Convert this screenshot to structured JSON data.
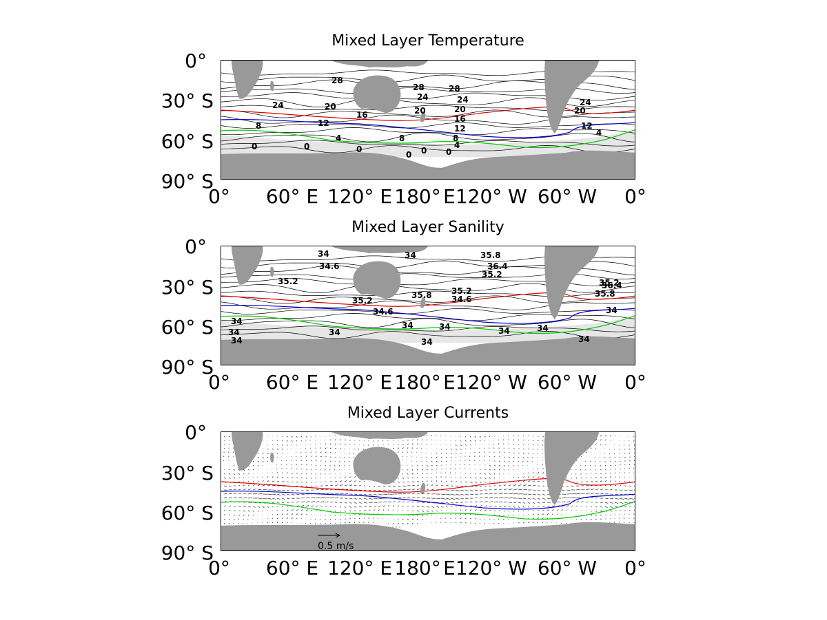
{
  "panels": [
    {
      "title": "Mixed Layer Temperature",
      "kind": "temperature",
      "yticks": [
        "0°",
        "30° S",
        "60° S",
        "90° S"
      ],
      "xticks": [
        "0°",
        "60° E",
        "120° E",
        "180°",
        "E120° W",
        "60° W",
        "0°"
      ],
      "contour_labels": [
        "28",
        "28",
        "28",
        "24",
        "24",
        "24",
        "24",
        "20",
        "20",
        "20",
        "20",
        "16",
        "16",
        "12",
        "12",
        "12",
        "8",
        "8",
        "8",
        "4",
        "4",
        "4",
        "0",
        "0",
        "0",
        "0",
        "0",
        "0"
      ]
    },
    {
      "title": "Mixed Layer Sanility",
      "kind": "salinity",
      "yticks": [
        "0°",
        "30° S",
        "60° S",
        "90° S"
      ],
      "xticks": [
        "0°",
        "60° E",
        "120° E",
        "180°",
        "E120° W",
        "60° W",
        "0°"
      ],
      "contour_labels": [
        "34",
        "34",
        "34.6",
        "35.2",
        "35.2",
        "35.8",
        "36.4",
        "35.2",
        "35.8",
        "35.2",
        "34.6",
        "34.6",
        "35.2",
        "36.4",
        "35.8",
        "34",
        "34",
        "34",
        "34",
        "34",
        "34",
        "34",
        "34",
        "34",
        "34",
        "34"
      ]
    },
    {
      "title": "Mixed Layer Currents",
      "kind": "currents",
      "yticks": [
        "0°",
        "30° S",
        "60° S",
        "90° S"
      ],
      "xticks": [
        "0°",
        "60° E",
        "120° E",
        "180°",
        "E120° W",
        "60° W",
        "0°"
      ],
      "scale_label": "0.5 m/s"
    }
  ],
  "colors": {
    "land": "#999999",
    "ice": "#e6e6e6",
    "contour": "#000000",
    "front_red": "#dd0000",
    "front_blue": "#0000cc",
    "front_green": "#00cc00"
  }
}
